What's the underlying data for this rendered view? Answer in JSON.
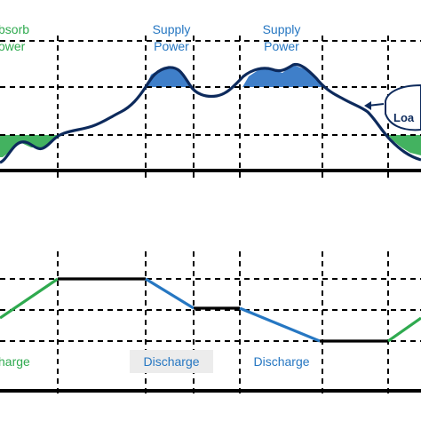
{
  "top_panel": {
    "absorb_label": "bsorb",
    "absorb_label_line2": "ower",
    "supply_label_1": "Supply",
    "supply_label_1_line2": "Power",
    "supply_label_2": "Supply",
    "supply_label_2_line2": "Power",
    "load_label": "Loa"
  },
  "bottom_panel": {
    "left_label": "harge",
    "discharge_label_1": "Discharge",
    "discharge_label_2": "Discharge"
  },
  "colors": {
    "load_curve": "#0d2a5c",
    "supply_fill": "#3f7fc9",
    "absorb_fill": "#2faa4f",
    "charge_line": "#2faa4f",
    "discharge_line": "#2677c2",
    "idle_line": "#000000",
    "absorb_text": "#2faa4f",
    "supply_text": "#2677c2",
    "discharge_box": "#ececec"
  }
}
